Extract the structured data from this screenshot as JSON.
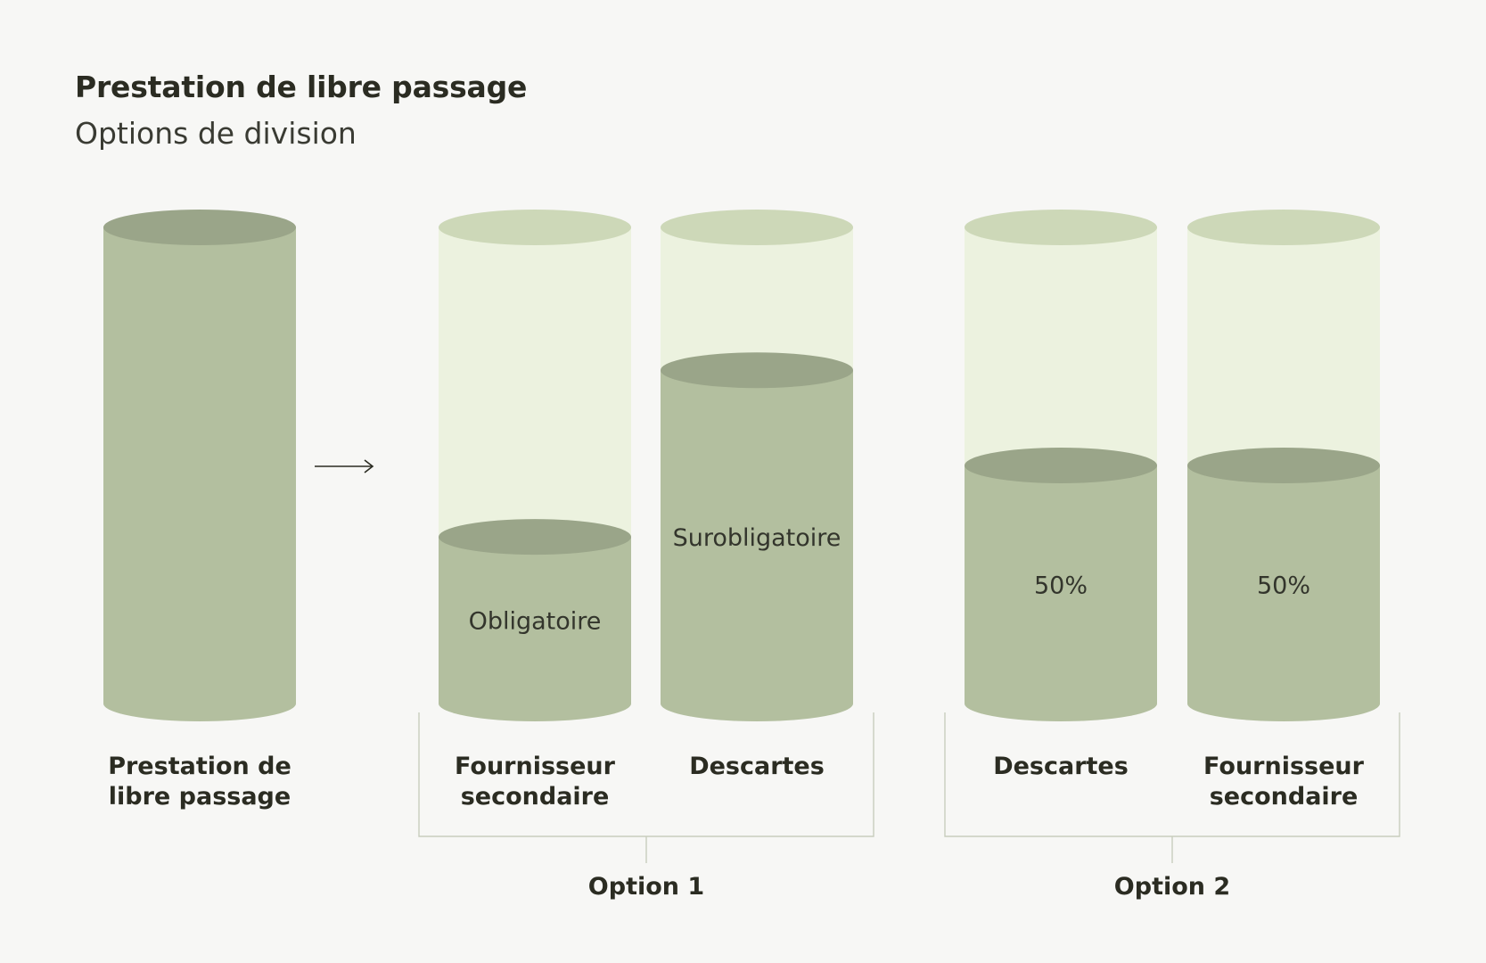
{
  "title": "Prestation de libre passage",
  "subtitle": "Options de division",
  "colors": {
    "background": "#f7f7f5",
    "fill_body": "#b3bf9f",
    "fill_top": "#9aa589",
    "empty_body": "#ecf2df",
    "empty_top": "#cdd8b8",
    "bracket": "#c9cdbd",
    "text": "#2b2c22"
  },
  "source": {
    "label_lines": [
      "Prestation de",
      "libre passage"
    ],
    "fill_fraction": 1.0
  },
  "arrow_icon": "long-right-arrow-icon",
  "options": [
    {
      "name": "Option 1",
      "cylinders": [
        {
          "fill_fraction": 0.35,
          "inner_label": "Obligatoire",
          "label_lines": [
            "Fournisseur",
            "secondaire"
          ]
        },
        {
          "fill_fraction": 0.7,
          "inner_label": "Surobligatoire",
          "label_lines": [
            "Descartes"
          ]
        }
      ]
    },
    {
      "name": "Option 2",
      "cylinders": [
        {
          "fill_fraction": 0.5,
          "inner_label": "50%",
          "label_lines": [
            "Descartes"
          ]
        },
        {
          "fill_fraction": 0.5,
          "inner_label": "50%",
          "label_lines": [
            "Fournisseur",
            "secondaire"
          ]
        }
      ]
    }
  ]
}
